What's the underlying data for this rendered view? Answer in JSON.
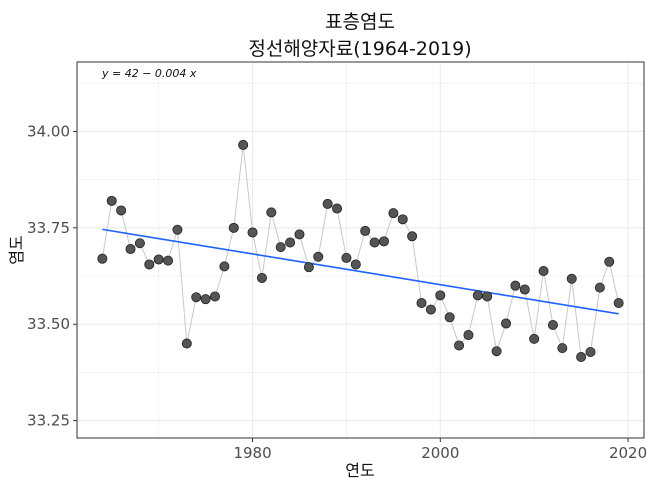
{
  "chart_data": {
    "type": "scatter",
    "title": "표층염도",
    "subtitle": "정선해양자료(1964-2019)",
    "xlabel": "연도",
    "ylabel": "염도",
    "equation": "y = 42 − 0.004 x",
    "xlim": [
      1961.3,
      2021.7
    ],
    "ylim": [
      33.205,
      34.18
    ],
    "xticks": [
      1980,
      2000,
      2020
    ],
    "xtick_labels": [
      "1980",
      "2000",
      "2020"
    ],
    "yticks": [
      33.25,
      33.5,
      33.75,
      34.0
    ],
    "ytick_labels": [
      "33.25",
      "33.50",
      "33.75",
      "34.00"
    ],
    "grid": true,
    "colors": {
      "points": "#555555",
      "trend": "#1f63ff",
      "connector": "#c8c8c8",
      "grid": "#ebebeb"
    },
    "x": [
      1964,
      1965,
      1966,
      1967,
      1968,
      1969,
      1970,
      1971,
      1972,
      1973,
      1974,
      1975,
      1976,
      1977,
      1978,
      1979,
      1980,
      1981,
      1982,
      1983,
      1984,
      1985,
      1986,
      1987,
      1988,
      1989,
      1990,
      1991,
      1992,
      1993,
      1994,
      1995,
      1996,
      1997,
      1998,
      1999,
      2000,
      2001,
      2002,
      2003,
      2004,
      2005,
      2006,
      2007,
      2008,
      2009,
      2010,
      2011,
      2012,
      2013,
      2014,
      2015,
      2016,
      2017,
      2018,
      2019
    ],
    "y": [
      33.67,
      33.82,
      33.795,
      33.695,
      33.71,
      33.655,
      33.668,
      33.665,
      33.745,
      33.45,
      33.57,
      33.565,
      33.572,
      33.65,
      33.75,
      33.965,
      33.738,
      33.62,
      33.79,
      33.7,
      33.712,
      33.733,
      33.648,
      33.675,
      33.812,
      33.8,
      33.672,
      33.655,
      33.742,
      33.712,
      33.715,
      33.788,
      33.772,
      33.728,
      33.555,
      33.538,
      33.575,
      33.518,
      33.445,
      33.472,
      33.575,
      33.572,
      33.43,
      33.502,
      33.6,
      33.59,
      33.462,
      33.638,
      33.498,
      33.438,
      33.618,
      33.415,
      33.428,
      33.595,
      33.662,
      33.555
    ],
    "trend": {
      "x": [
        1964,
        2019
      ],
      "y": [
        33.746,
        33.527
      ]
    }
  }
}
